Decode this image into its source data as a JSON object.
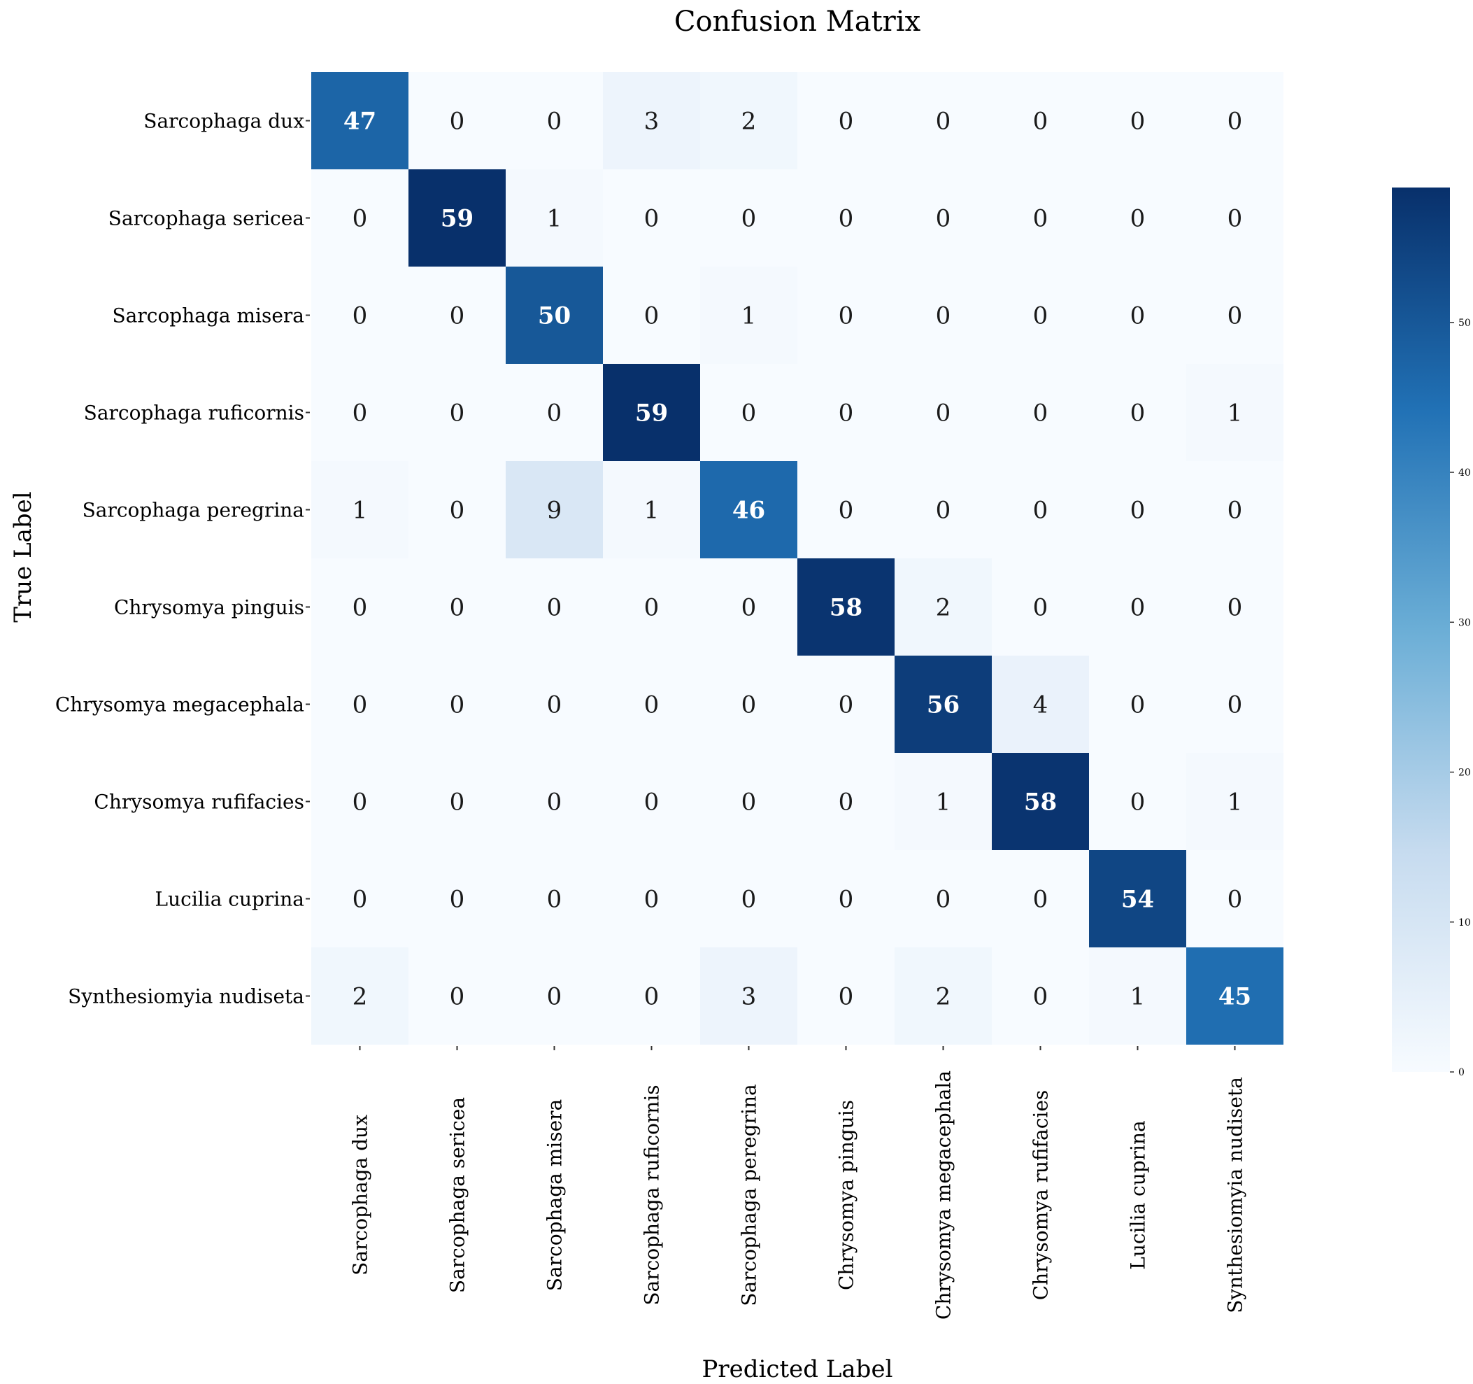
{
  "chart_data": {
    "type": "heatmap",
    "title": "Confusion Matrix",
    "xlabel": "Predicted Label",
    "ylabel": "True Label",
    "labels": [
      "Sarcophaga dux",
      "Sarcophaga sericea",
      "Sarcophaga misera",
      "Sarcophaga ruficornis",
      "Sarcophaga peregrina",
      "Chrysomya pinguis",
      "Chrysomya megacephala",
      "Chrysomya rufifacies",
      "Lucilia cuprina",
      "Synthesiomyia nudiseta"
    ],
    "matrix": [
      [
        47,
        0,
        0,
        3,
        2,
        0,
        0,
        0,
        0,
        0
      ],
      [
        0,
        59,
        1,
        0,
        0,
        0,
        0,
        0,
        0,
        0
      ],
      [
        0,
        0,
        50,
        0,
        1,
        0,
        0,
        0,
        0,
        0
      ],
      [
        0,
        0,
        0,
        59,
        0,
        0,
        0,
        0,
        0,
        1
      ],
      [
        1,
        0,
        9,
        1,
        46,
        0,
        0,
        0,
        0,
        0
      ],
      [
        0,
        0,
        0,
        0,
        0,
        58,
        2,
        0,
        0,
        0
      ],
      [
        0,
        0,
        0,
        0,
        0,
        0,
        56,
        4,
        0,
        0
      ],
      [
        0,
        0,
        0,
        0,
        0,
        0,
        1,
        58,
        0,
        1
      ],
      [
        0,
        0,
        0,
        0,
        0,
        0,
        0,
        0,
        54,
        0
      ],
      [
        2,
        0,
        0,
        0,
        3,
        0,
        2,
        0,
        1,
        45
      ]
    ],
    "colorbar": {
      "min": 0,
      "max": 59,
      "ticks": [
        0,
        10,
        20,
        30,
        40,
        50
      ]
    },
    "colormap": [
      "#f7fbff",
      "#c6dbef",
      "#6baed6",
      "#2171b5",
      "#08306b"
    ]
  }
}
